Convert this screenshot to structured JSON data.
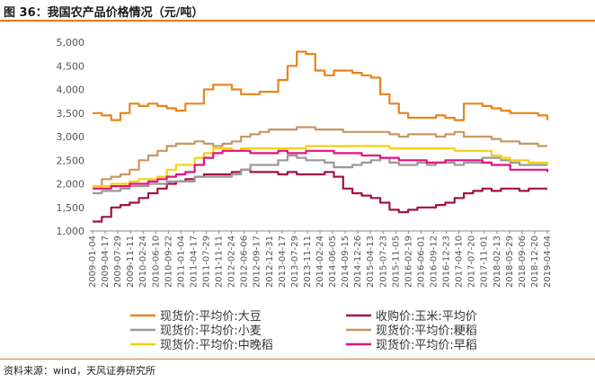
{
  "header": {
    "title": "图 36：我国农产品价格情况（元/吨）"
  },
  "footer": {
    "source": "资料来源：wind，天风证券研究所"
  },
  "chart_data": {
    "type": "line",
    "title": "图 36：我国农产品价格情况（元/吨）",
    "ylim": [
      1000,
      5000
    ],
    "yticks": [
      1000,
      1500,
      2000,
      2500,
      3000,
      3500,
      4000,
      4500,
      5000
    ],
    "ytick_labels": [
      "1,000",
      "1,500",
      "2,000",
      "2,500",
      "3,000",
      "3,500",
      "4,000",
      "4,500",
      "5,000"
    ],
    "xtick_labels": [
      "2009-01-04",
      "2009-04-17",
      "2009-07-29",
      "2009-11-11",
      "2010-02-24",
      "2010-06-10",
      "2010-09-22",
      "2011-01-04",
      "2011-04-17",
      "2011-07-29",
      "2011-11-11",
      "2012-02-24",
      "2012-06-06",
      "2012-09-17",
      "2012-12-31",
      "2013-04-17",
      "2013-07-29",
      "2013-11-11",
      "2014-02-24",
      "2014-06-05",
      "2014-09-15",
      "2014-12-26",
      "2015-04-13",
      "2015-07-23",
      "2015-11-05",
      "2016-02-19",
      "2016-06-01",
      "2016-09-12",
      "2016-12-23",
      "2017-04-10",
      "2017-07-20",
      "2017-11-01",
      "2018-02-13",
      "2018-05-29",
      "2018-09-06",
      "2018-12-20",
      "2019-04-04"
    ],
    "grid": false,
    "legend_position": "bottom",
    "series": [
      {
        "name": "现货价:平均价:大豆",
        "color": "#e8841c",
        "values": [
          3500,
          3450,
          3350,
          3500,
          3700,
          3650,
          3700,
          3650,
          3600,
          3550,
          3700,
          3700,
          4000,
          4100,
          4100,
          4000,
          3900,
          3900,
          3950,
          3950,
          4200,
          4500,
          4800,
          4750,
          4400,
          4300,
          4400,
          4400,
          4350,
          4300,
          4250,
          3900,
          3700,
          3500,
          3400,
          3400,
          3400,
          3450,
          3400,
          3350,
          3700,
          3700,
          3650,
          3600,
          3550,
          3500,
          3500,
          3500,
          3450,
          3350
        ]
      },
      {
        "name": "收购价:玉米:平均价",
        "color": "#a3133c",
        "values": [
          1200,
          1300,
          1500,
          1550,
          1600,
          1700,
          1800,
          1900,
          2000,
          2050,
          2100,
          2150,
          2200,
          2200,
          2200,
          2250,
          2300,
          2250,
          2250,
          2250,
          2200,
          2250,
          2200,
          2200,
          2200,
          2250,
          2150,
          1900,
          1800,
          1750,
          1700,
          1600,
          1450,
          1400,
          1450,
          1500,
          1500,
          1550,
          1600,
          1700,
          1800,
          1850,
          1900,
          1850,
          1900,
          1900,
          1850,
          1900,
          1900,
          1900
        ]
      },
      {
        "name": "现货价:平均价:小麦",
        "color": "#999999",
        "values": [
          1800,
          1850,
          1850,
          1900,
          1950,
          1950,
          2000,
          2000,
          2050,
          2050,
          2050,
          2150,
          2150,
          2150,
          2150,
          2200,
          2300,
          2400,
          2400,
          2400,
          2500,
          2600,
          2550,
          2500,
          2500,
          2450,
          2350,
          2350,
          2400,
          2450,
          2500,
          2550,
          2450,
          2400,
          2400,
          2450,
          2400,
          2450,
          2450,
          2400,
          2450,
          2450,
          2550,
          2550,
          2500,
          2450,
          2400,
          2400,
          2400,
          2400
        ]
      },
      {
        "name": "现货价:平均价:粳稻",
        "color": "#c99660",
        "values": [
          1950,
          2100,
          2150,
          2200,
          2300,
          2500,
          2600,
          2700,
          2800,
          2850,
          2850,
          2900,
          2850,
          2800,
          2850,
          2900,
          3000,
          3050,
          3100,
          3150,
          3150,
          3150,
          3200,
          3200,
          3150,
          3150,
          3150,
          3100,
          3100,
          3100,
          3100,
          3100,
          3050,
          3000,
          3050,
          3050,
          3050,
          3000,
          3050,
          3100,
          3000,
          3000,
          3000,
          2950,
          2900,
          2900,
          2850,
          2850,
          2800,
          2800
        ]
      },
      {
        "name": "现货价:平均价:中晚稻",
        "color": "#f3d10f",
        "values": [
          1950,
          1950,
          2000,
          2000,
          2050,
          2100,
          2100,
          2150,
          2300,
          2400,
          2400,
          2550,
          2650,
          2750,
          2750,
          2700,
          2750,
          2750,
          2750,
          2750,
          2750,
          2750,
          2750,
          2800,
          2800,
          2800,
          2800,
          2800,
          2800,
          2800,
          2800,
          2800,
          2750,
          2750,
          2750,
          2750,
          2750,
          2750,
          2750,
          2700,
          2700,
          2700,
          2700,
          2600,
          2550,
          2500,
          2500,
          2450,
          2450,
          2400
        ]
      },
      {
        "name": "现货价:平均价:早稻",
        "color": "#e4127f",
        "values": [
          1900,
          1900,
          1950,
          1950,
          2000,
          2000,
          2050,
          2100,
          2150,
          2200,
          2250,
          2400,
          2550,
          2650,
          2700,
          2700,
          2700,
          2650,
          2650,
          2650,
          2700,
          2650,
          2650,
          2700,
          2700,
          2700,
          2650,
          2650,
          2650,
          2600,
          2600,
          2550,
          2550,
          2500,
          2500,
          2500,
          2450,
          2450,
          2500,
          2500,
          2500,
          2500,
          2450,
          2400,
          2400,
          2300,
          2300,
          2300,
          2300,
          2250
        ]
      }
    ]
  }
}
